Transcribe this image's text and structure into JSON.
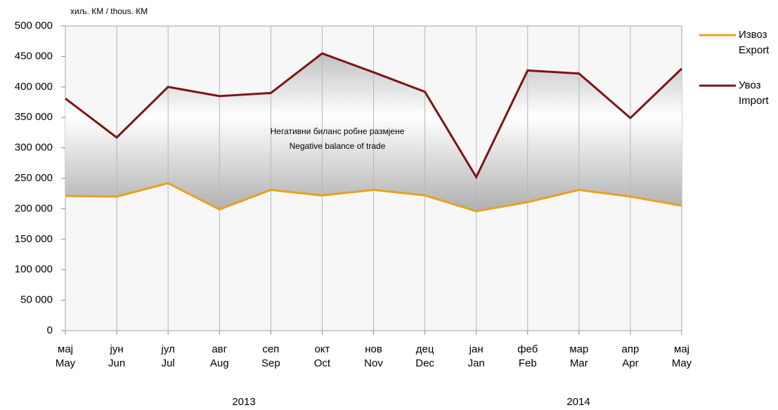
{
  "chart_data": {
    "type": "line",
    "y_label": "хиљ. КМ / thous. КМ",
    "annotation": [
      "Негативни биланс робне размјене",
      "Negative balance of trade"
    ],
    "categories": [
      [
        "мај",
        "May"
      ],
      [
        "јун",
        "Jun"
      ],
      [
        "јул",
        "Jul"
      ],
      [
        "авг",
        "Aug"
      ],
      [
        "сеп",
        "Sep"
      ],
      [
        "окт",
        "Oct"
      ],
      [
        "нов",
        "Nov"
      ],
      [
        "дец",
        "Dec"
      ],
      [
        "јан",
        "Jan"
      ],
      [
        "феб",
        "Feb"
      ],
      [
        "мар",
        "Mar"
      ],
      [
        "апр",
        "Apr"
      ],
      [
        "мај",
        "May"
      ]
    ],
    "year_labels": [
      "2013",
      "2014"
    ],
    "series": [
      {
        "name": "Извоз",
        "name_en": "Export",
        "color": "#e8a020",
        "values": [
          221000,
          220000,
          242000,
          199000,
          231000,
          222000,
          231000,
          222000,
          196000,
          211000,
          231000,
          220000,
          205000
        ]
      },
      {
        "name": "Увоз",
        "name_en": "Import",
        "color": "#7b1416",
        "values": [
          381000,
          317000,
          400000,
          385000,
          390000,
          455000,
          424000,
          392000,
          252000,
          427000,
          422000,
          349000,
          430000
        ]
      }
    ],
    "ylim": [
      0,
      500000
    ],
    "yticks": [
      0,
      {
        "value": 50000,
        "label": "50 000"
      },
      {
        "value": 100000,
        "label": "100 000"
      },
      {
        "value": 150000,
        "label": "150 000"
      },
      {
        "value": 200000,
        "label": "200 000"
      },
      {
        "value": 250000,
        "label": "250 000"
      },
      {
        "value": 300000,
        "label": "300 000"
      },
      {
        "value": 350000,
        "label": "350 000"
      },
      {
        "value": 400000,
        "label": "400 000"
      },
      {
        "value": 450000,
        "label": "450 000"
      },
      {
        "value": 500000,
        "label": "500 000"
      }
    ],
    "grid": true
  }
}
